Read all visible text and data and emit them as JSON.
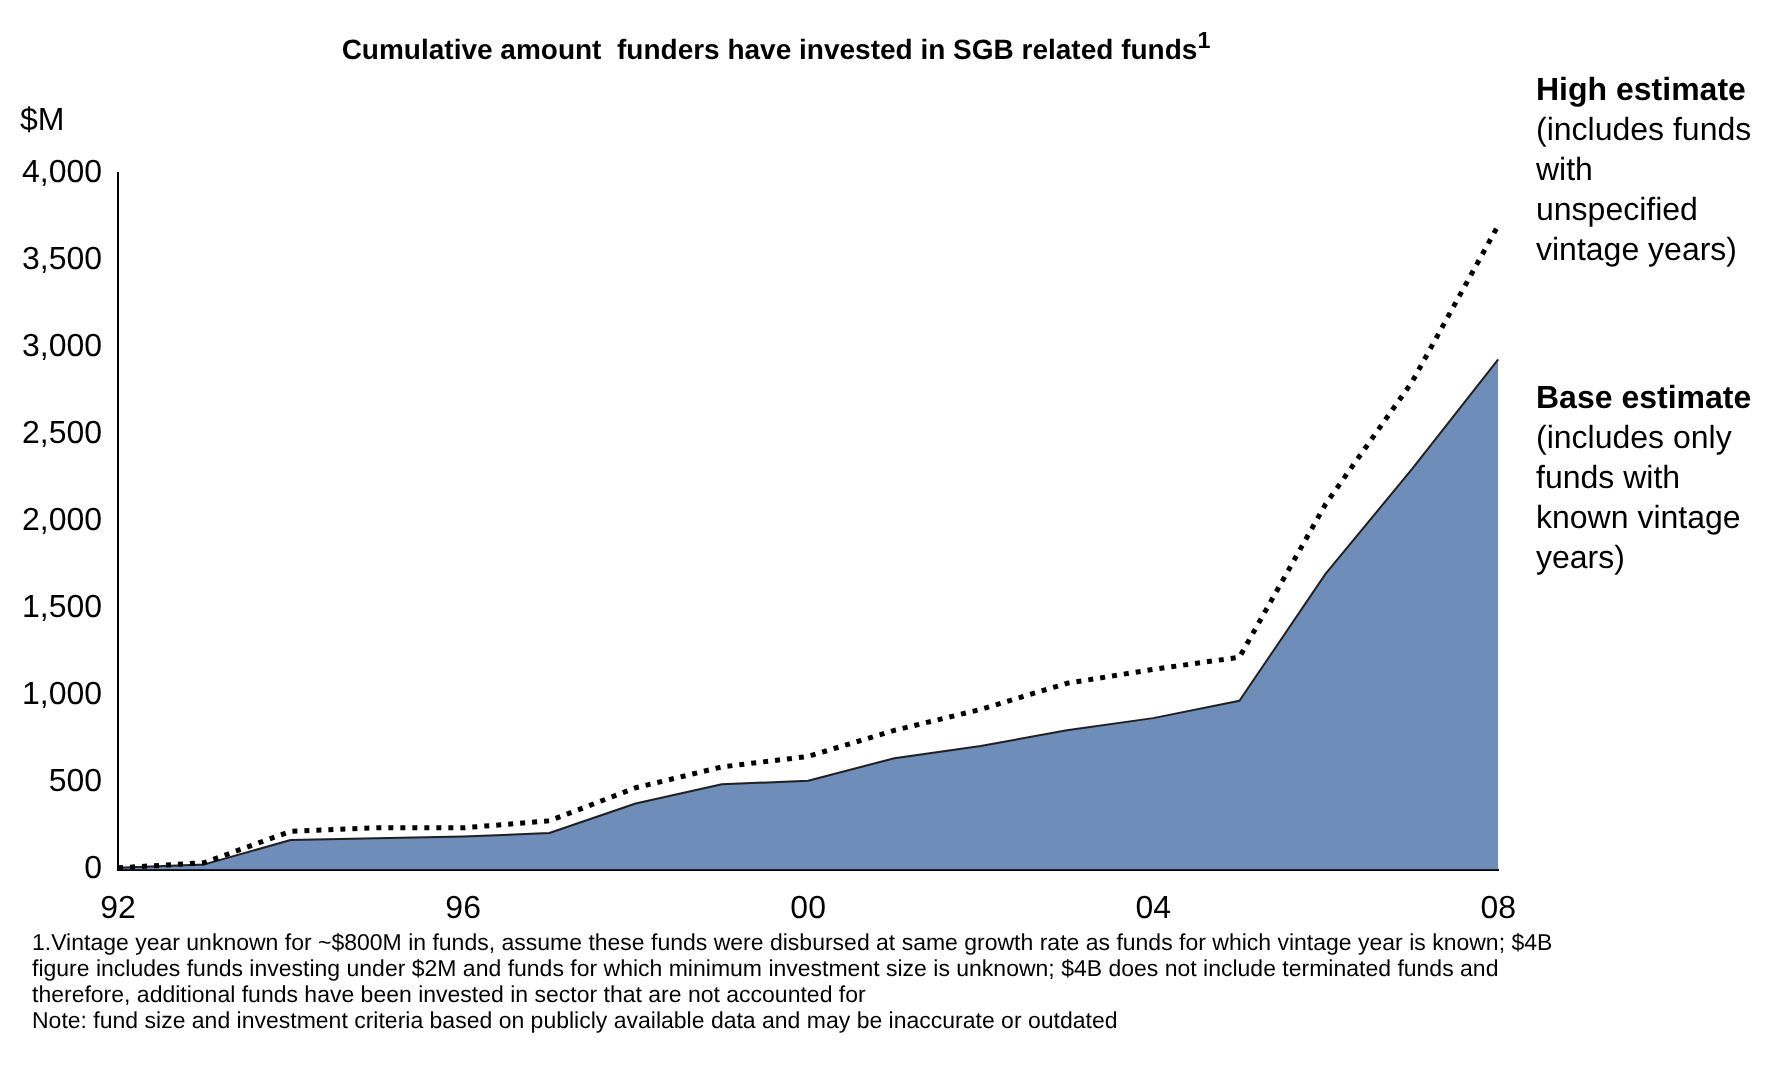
{
  "chart_data": {
    "type": "area",
    "title": "Cumulative amount  funders have invested in SGB related funds$^{1}$",
    "ylabel": "$M",
    "categories": [
      "92",
      null,
      null,
      null,
      "96",
      null,
      null,
      null,
      "00",
      null,
      null,
      null,
      "04",
      null,
      null,
      null,
      "08"
    ],
    "series": [
      {
        "name": "Base estimate",
        "color": "#6e8db9",
        "values": [
          10,
          30,
          170,
          180,
          190,
          210,
          380,
          490,
          510,
          640,
          710,
          800,
          870,
          970,
          1700,
          2300,
          2930
        ]
      },
      {
        "name": "High estimate",
        "type": "line",
        "line_style": "dotted",
        "color": "#000000",
        "values": [
          10,
          40,
          220,
          240,
          240,
          280,
          470,
          590,
          650,
          800,
          920,
          1070,
          1150,
          1220,
          2100,
          2800,
          3700
        ]
      }
    ],
    "ylim": [
      0,
      4000
    ],
    "yticks": [
      {
        "value": 0,
        "label": "0"
      },
      {
        "value": 500,
        "label": "500"
      },
      {
        "value": 1000,
        "label": "1,000"
      },
      {
        "value": 1500,
        "label": "1,500"
      },
      {
        "value": 2000,
        "label": "2,000"
      },
      {
        "value": 2500,
        "label": "2,500"
      },
      {
        "value": 3000,
        "label": "3,000"
      },
      {
        "value": 3500,
        "label": "3,500"
      },
      {
        "value": 4000,
        "label": "4,000"
      }
    ],
    "grid": false,
    "legend": false,
    "annotations": [
      "(includes funds with unspecified vintage years)",
      "(includes only funds with known vintage years)",
      "1.Vintage year unknown for ~$800M in funds, assume these funds were disbursed at same growth rate as funds for which vintage year is known; $4B figure includes funds investing under $2M and funds for which minimum investment size is unknown; $4B does not include terminated funds and therefore, additional funds have been invested in sector that are not accounted for",
      "Note: fund size and investment criteria based on publicly available data and may be inaccurate or outdated"
    ]
  }
}
